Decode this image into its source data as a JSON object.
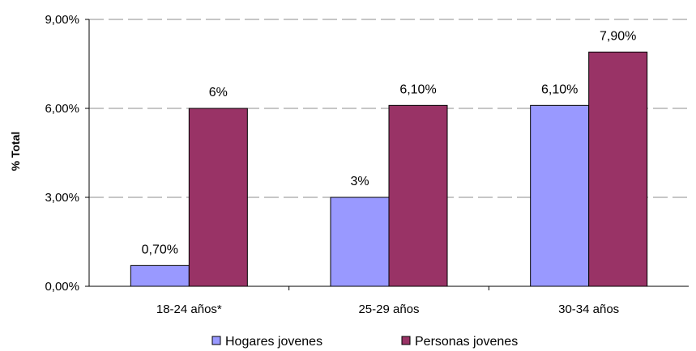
{
  "chart_data": {
    "type": "bar",
    "title": "",
    "xlabel": "",
    "ylabel": "% Total",
    "categories": [
      "18-24 años*",
      "25-29 años",
      "30-34 años"
    ],
    "series": [
      {
        "name": "Hogares jovenes",
        "color": "#9999FF",
        "values": [
          0.7,
          3.0,
          6.1
        ],
        "labels": [
          "0,70%",
          "3%",
          "6,10%"
        ]
      },
      {
        "name": "Personas jovenes",
        "color": "#993366",
        "values": [
          6.0,
          6.1,
          7.9
        ],
        "labels": [
          "6%",
          "6,10%",
          "7,90%"
        ]
      }
    ],
    "ylim": [
      0,
      9
    ],
    "yticks": [
      0,
      3,
      6,
      9
    ],
    "ytick_labels": [
      "0,00%",
      "3,00%",
      "6,00%",
      "9,00%"
    ],
    "grid": true,
    "legend_position": "bottom"
  }
}
